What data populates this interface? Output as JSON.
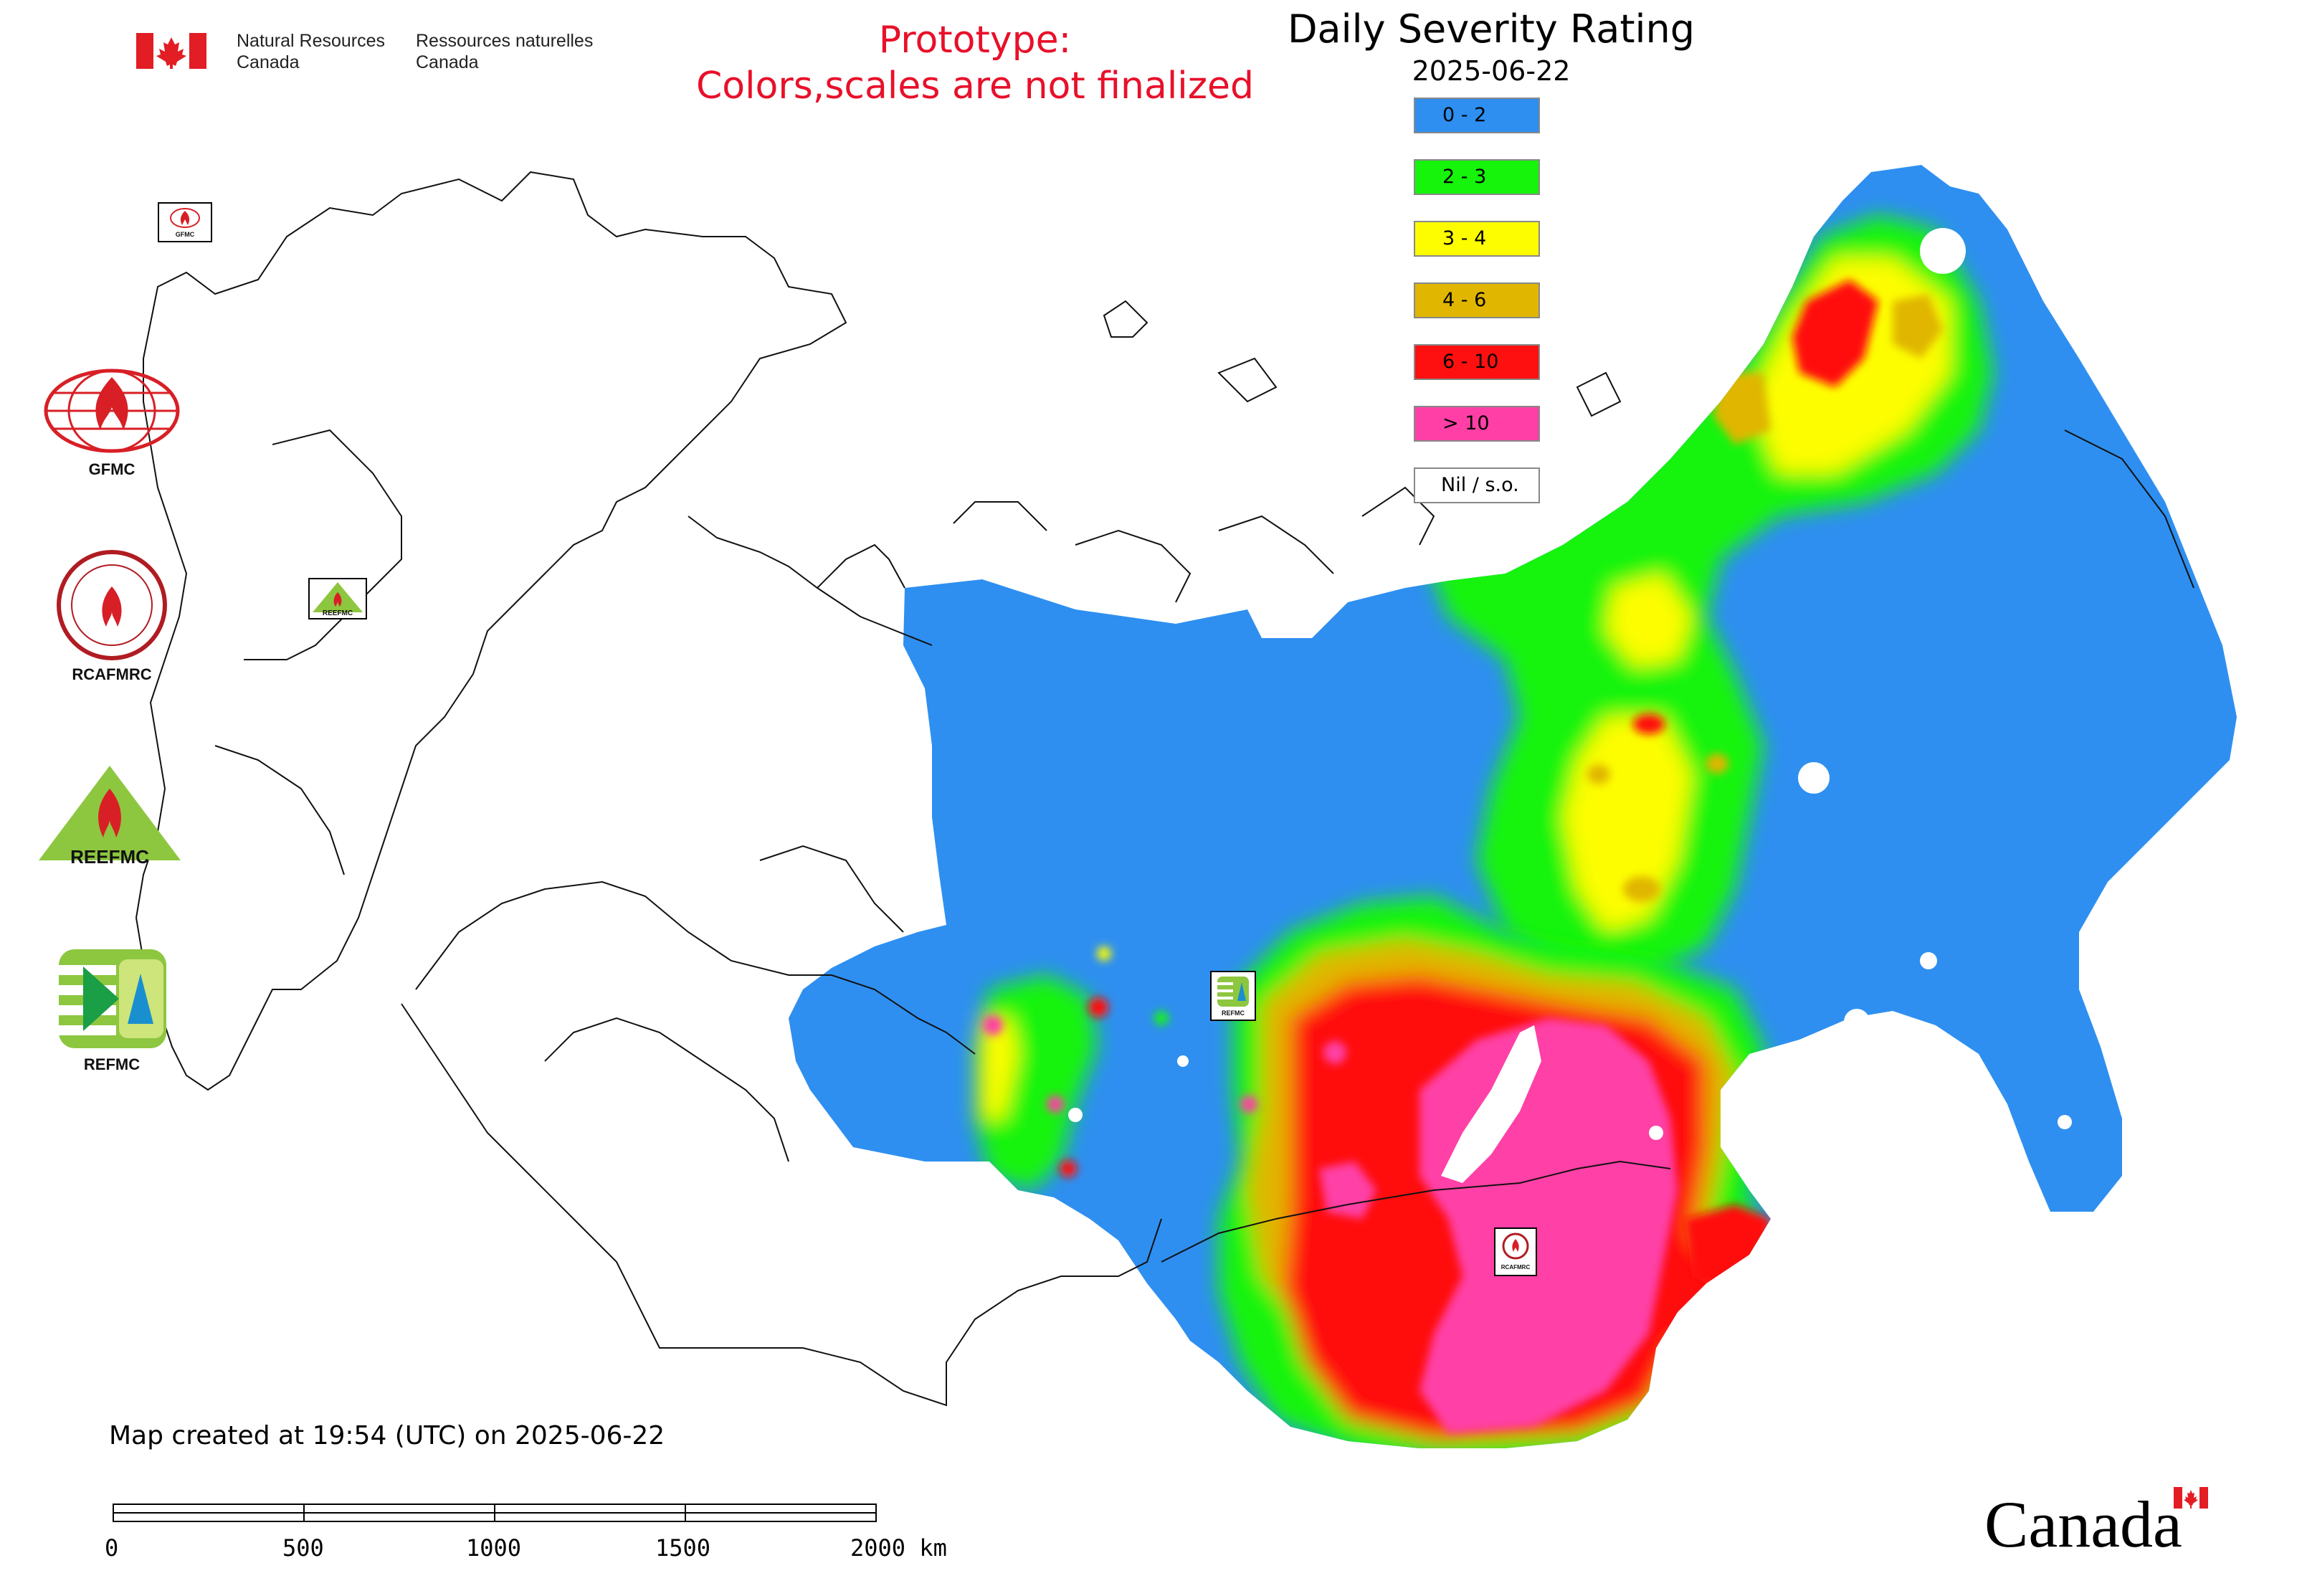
{
  "header": {
    "agency_en_line1": "Natural Resources",
    "agency_en_line2": "Canada",
    "agency_fr_line1": "Ressources naturelles",
    "agency_fr_line2": "Canada",
    "prototype_line1": "Prototype:",
    "prototype_line2": "Colors,scales are not finalized"
  },
  "map": {
    "title": "Daily Severity Rating",
    "date": "2025-06-22"
  },
  "legend": [
    {
      "label": "0 - 2",
      "color": "#2e8ff0"
    },
    {
      "label": "2 - 3",
      "color": "#16f40c"
    },
    {
      "label": "3 - 4",
      "color": "#fdfd00"
    },
    {
      "label": "4 - 6",
      "color": "#e0b600"
    },
    {
      "label": "6 - 10",
      "color": "#ff1010"
    },
    {
      "label": "> 10",
      "color": "#ff3fa6"
    },
    {
      "label": "Nil / s.o.",
      "color": "#ffffff"
    }
  ],
  "organizations": [
    {
      "name": "GFMC",
      "icon": "gfmc-logo-icon"
    },
    {
      "name": "RCAFMRC",
      "icon": "rcafmrc-logo-icon"
    },
    {
      "name": "",
      "icon": "reefmc-logo-icon",
      "logo_text": "REEFMC"
    },
    {
      "name": "REFMC",
      "icon": "refmc-logo-icon"
    }
  ],
  "map_markers": {
    "gfmc": "GFMC",
    "reefmc": "REEFMC",
    "refmc": "REFMC",
    "rcafmrc": "RCAFMRC"
  },
  "footer": {
    "created": "Map created at 19:54 (UTC) on 2025-06-22",
    "scale_labels": [
      "0",
      "500",
      "1000",
      "1500",
      "2000 km"
    ],
    "wordmark": "Canada"
  }
}
